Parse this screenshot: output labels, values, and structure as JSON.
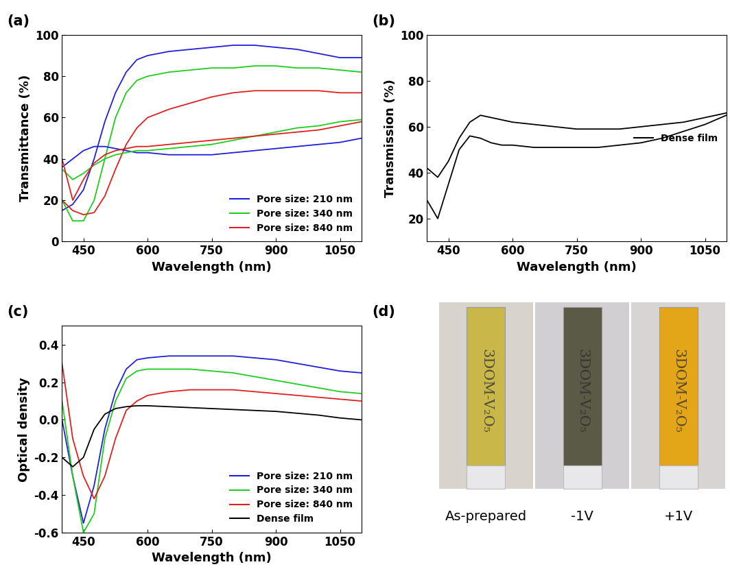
{
  "chart_data": [
    {
      "type": "line",
      "panel_label": "(a)",
      "x_label": "Wavelength (nm)",
      "y_label": "Transmittance (%)",
      "x": [
        400,
        425,
        450,
        475,
        500,
        525,
        550,
        575,
        600,
        650,
        700,
        750,
        800,
        850,
        900,
        950,
        1000,
        1050,
        1100
      ],
      "xlim": [
        400,
        1100
      ],
      "xticks": [
        450,
        600,
        750,
        900,
        1050
      ],
      "ylim": [
        0,
        100
      ],
      "yticks": [
        0,
        20,
        40,
        60,
        80,
        100
      ],
      "legend": "lower right",
      "series": [
        {
          "name": "Pore size: 210 nm",
          "color": "#1f1fdc",
          "values": [
            15,
            18,
            25,
            40,
            58,
            72,
            82,
            88,
            90,
            92,
            93,
            94,
            95,
            95,
            94,
            93,
            91,
            89,
            89
          ]
        },
        {
          "name": "Pore size: 340 nm",
          "color": "#1fcc1f",
          "values": [
            20,
            10,
            10,
            20,
            40,
            60,
            72,
            78,
            80,
            82,
            83,
            84,
            84,
            85,
            85,
            84,
            84,
            83,
            82
          ]
        },
        {
          "name": "Pore size: 840 nm",
          "color": "#e0201f",
          "values": [
            20,
            15,
            13,
            14,
            22,
            35,
            47,
            55,
            60,
            64,
            67,
            70,
            72,
            73,
            73,
            73,
            73,
            72,
            72
          ]
        },
        {
          "name": null,
          "color": "#1f1fdc",
          "values": [
            36,
            40,
            44,
            46,
            46,
            45,
            44,
            43,
            43,
            42,
            42,
            42,
            43,
            44,
            45,
            46,
            47,
            48,
            50
          ]
        },
        {
          "name": null,
          "color": "#1fcc1f",
          "values": [
            35,
            30,
            33,
            37,
            40,
            42,
            43,
            44,
            44,
            45,
            46,
            47,
            49,
            51,
            53,
            55,
            56,
            58,
            59
          ]
        },
        {
          "name": null,
          "color": "#e0201f",
          "values": [
            40,
            20,
            30,
            38,
            42,
            44,
            45,
            46,
            46,
            47,
            48,
            49,
            50,
            51,
            52,
            53,
            54,
            56,
            58
          ]
        }
      ]
    },
    {
      "type": "line",
      "panel_label": "(b)",
      "x_label": "Wavelength (nm)",
      "y_label": "Transmission (%)",
      "x": [
        400,
        425,
        450,
        475,
        500,
        525,
        550,
        575,
        600,
        650,
        700,
        750,
        800,
        850,
        900,
        950,
        1000,
        1050,
        1100
      ],
      "xlim": [
        400,
        1100
      ],
      "xticks": [
        450,
        600,
        750,
        900,
        1050
      ],
      "ylim": [
        10,
        100
      ],
      "yticks": [
        20,
        40,
        60,
        80,
        100
      ],
      "legend": "center right",
      "series": [
        {
          "name": "Dense film",
          "color": "#000000",
          "values": [
            42,
            38,
            45,
            55,
            62,
            65,
            64,
            63,
            62,
            61,
            60,
            59,
            59,
            59,
            60,
            61,
            62,
            64,
            66
          ]
        },
        {
          "name": null,
          "color": "#000000",
          "values": [
            28,
            20,
            35,
            50,
            56,
            55,
            53,
            52,
            52,
            51,
            51,
            51,
            51,
            52,
            53,
            55,
            58,
            61,
            65
          ]
        }
      ]
    },
    {
      "type": "line",
      "panel_label": "(c)",
      "x_label": "Wavelength (nm)",
      "y_label": "Optical density",
      "x": [
        400,
        425,
        450,
        475,
        500,
        525,
        550,
        575,
        600,
        650,
        700,
        750,
        800,
        850,
        900,
        950,
        1000,
        1050,
        1100
      ],
      "xlim": [
        400,
        1100
      ],
      "xticks": [
        450,
        600,
        750,
        900,
        1050
      ],
      "ylim": [
        -0.6,
        0.5
      ],
      "yticks": [
        -0.6,
        -0.4,
        -0.2,
        0.0,
        0.2,
        0.4
      ],
      "legend": "lower right",
      "series": [
        {
          "name": "Pore size: 210 nm",
          "color": "#1f1fdc",
          "values": [
            0,
            -0.3,
            -0.55,
            -0.35,
            -0.05,
            0.15,
            0.27,
            0.32,
            0.33,
            0.34,
            0.34,
            0.34,
            0.34,
            0.33,
            0.32,
            0.3,
            0.28,
            0.26,
            0.25
          ]
        },
        {
          "name": "Pore size: 340 nm",
          "color": "#1fcc1f",
          "values": [
            0.1,
            -0.3,
            -0.6,
            -0.5,
            -0.1,
            0.1,
            0.22,
            0.26,
            0.27,
            0.27,
            0.27,
            0.26,
            0.25,
            0.23,
            0.21,
            0.19,
            0.17,
            0.15,
            0.14
          ]
        },
        {
          "name": "Pore size: 840 nm",
          "color": "#e0201f",
          "values": [
            0.3,
            -0.1,
            -0.3,
            -0.42,
            -0.3,
            -0.1,
            0.05,
            0.1,
            0.13,
            0.15,
            0.16,
            0.16,
            0.16,
            0.15,
            0.14,
            0.13,
            0.12,
            0.11,
            0.1
          ]
        },
        {
          "name": "Dense film",
          "color": "#000000",
          "values": [
            -0.2,
            -0.25,
            -0.2,
            -0.05,
            0.03,
            0.06,
            0.07,
            0.075,
            0.075,
            0.07,
            0.065,
            0.06,
            0.055,
            0.05,
            0.045,
            0.035,
            0.025,
            0.01,
            0.0
          ]
        }
      ]
    }
  ],
  "photo": {
    "panel_label": "(d)",
    "slide_text": "3DOM-V₂O₅",
    "captions": [
      "As-prepared",
      "-1V",
      "+1V"
    ],
    "colors": [
      "#c9b74a",
      "#5b5a47",
      "#e3a619"
    ]
  }
}
